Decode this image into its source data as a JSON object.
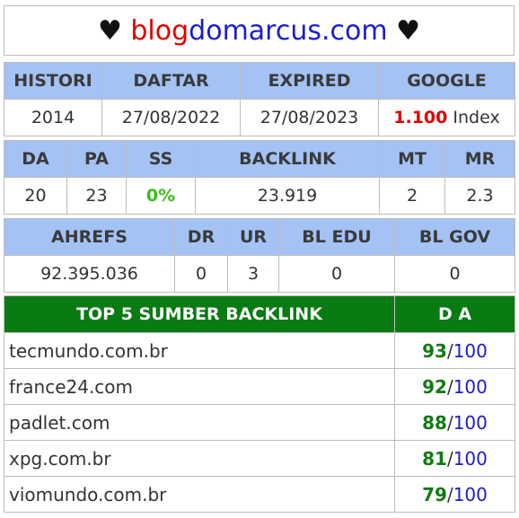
{
  "title": {
    "heart_left": "♥",
    "part_red": "blog",
    "part_blue": "domarcus.com",
    "heart_right": "♥"
  },
  "table1": {
    "headers": [
      "HISTORI",
      "DAFTAR",
      "EXPIRED",
      "GOOGLE"
    ],
    "values": {
      "histori": "2014",
      "daftar": "27/08/2022",
      "expired": "27/08/2023",
      "google_count": "1.100",
      "google_suffix": " Index"
    }
  },
  "table2": {
    "headers": [
      "DA",
      "PA",
      "SS",
      "BACKLINK",
      "MT",
      "MR"
    ],
    "values": [
      "20",
      "23",
      "0%",
      "23.919",
      "2",
      "2.3"
    ]
  },
  "table3": {
    "headers": [
      "AHREFS",
      "DR",
      "UR",
      "BL EDU",
      "BL GOV"
    ],
    "values": [
      "92.395.036",
      "0",
      "3",
      "0",
      "0"
    ]
  },
  "top5": {
    "headers": [
      "TOP 5 SUMBER BACKLINK",
      "D A"
    ],
    "rows": [
      {
        "domain": "tecmundo.com.br",
        "da": "93",
        "sep": "/",
        "max": "100"
      },
      {
        "domain": "france24.com",
        "da": "92",
        "sep": "/",
        "max": "100"
      },
      {
        "domain": "padlet.com",
        "da": "88",
        "sep": "/",
        "max": "100"
      },
      {
        "domain": "xpg.com.br",
        "da": "81",
        "sep": "/",
        "max": "100"
      },
      {
        "domain": "viomundo.com.br",
        "da": "79",
        "sep": "/",
        "max": "100"
      }
    ]
  },
  "colors": {
    "header_blue": "#a4c2f4",
    "header_green": "#0a7a12",
    "accent_red": "#e00000",
    "accent_blue": "#1c1cd0",
    "ss_green": "#3dbd1a",
    "da_green": "#137a13"
  }
}
